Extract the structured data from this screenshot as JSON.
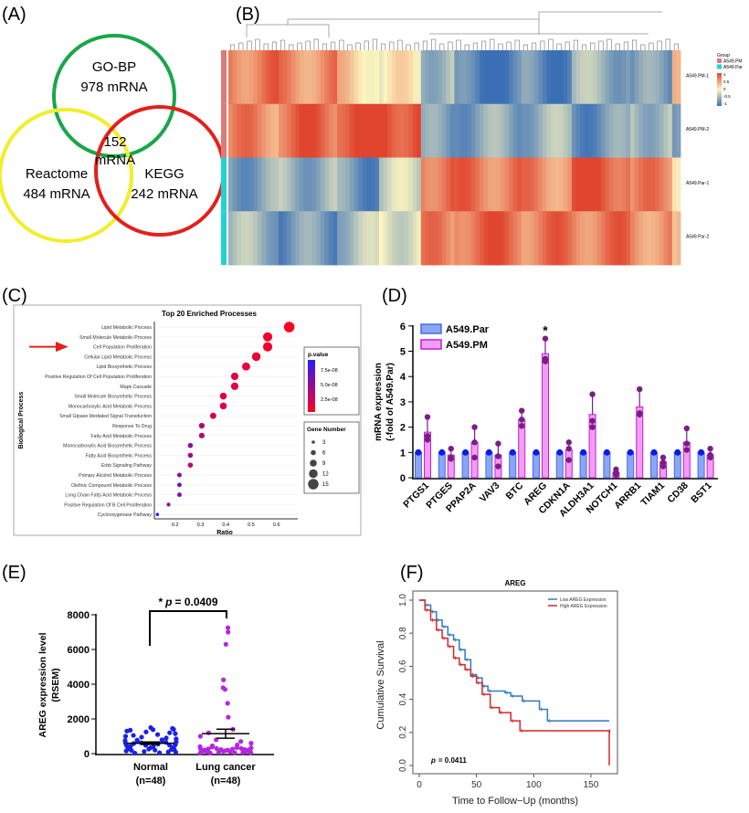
{
  "panel_labels": [
    "(A)",
    "(B)",
    "(C)",
    "(D)",
    "(E)",
    "(F)"
  ],
  "chart_data": [
    {
      "type": "venn",
      "sets": [
        {
          "label": "GO-BP",
          "count": "978 mRNA",
          "color": "#1aa64a"
        },
        {
          "label": "Reactome",
          "count": "484 mRNA",
          "color": "#f2ee2a"
        },
        {
          "label": "KEGG",
          "count": "242 mRNA",
          "color": "#e3201b"
        }
      ],
      "intersection": {
        "count": "152",
        "unit": "mRNA"
      }
    },
    {
      "type": "heatmap",
      "rows": [
        "A549.PM-1",
        "A549.PM-2",
        "A549.Par-1",
        "A549.Par-2"
      ],
      "row_groups": [
        "A549.PM",
        "A549.PM",
        "A549.Par",
        "A549.Par"
      ],
      "legend": {
        "title": "Group",
        "entries": [
          {
            "label": "A549.PM",
            "color": "#e07a7a"
          },
          {
            "label": "A549.Par",
            "color": "#22d3d3"
          }
        ]
      },
      "color_scale": {
        "ticks": [
          "1",
          "0.5",
          "0",
          "-0.5",
          "-1"
        ],
        "low": "#3a6fb5",
        "mid": "#fdf6c0",
        "high": "#e0452e"
      },
      "column_blocks": [
        {
          "n": 12,
          "values": [
            0.7,
            0.6,
            -0.6,
            -0.5
          ]
        },
        {
          "n": 14,
          "values": [
            0.6,
            0.8,
            -0.5,
            -0.7
          ]
        },
        {
          "n": 10,
          "values": [
            0.2,
            1.0,
            -0.7,
            -0.4
          ]
        },
        {
          "n": 10,
          "values": [
            0.0,
            1.0,
            -0.3,
            -0.1
          ]
        },
        {
          "n": 8,
          "values": [
            -0.4,
            -0.7,
            0.8,
            0.6
          ]
        },
        {
          "n": 16,
          "values": [
            -0.9,
            -0.6,
            0.7,
            0.8
          ]
        },
        {
          "n": 12,
          "values": [
            -0.8,
            -0.5,
            0.6,
            0.7
          ]
        },
        {
          "n": 14,
          "values": [
            -0.5,
            -0.7,
            0.9,
            0.7
          ]
        },
        {
          "n": 10,
          "values": [
            -0.7,
            -0.4,
            0.6,
            0.6
          ]
        },
        {
          "n": 2,
          "values": [
            0.6,
            -0.9,
            0.3,
            0.1
          ]
        }
      ]
    },
    {
      "type": "scatter",
      "title": "Top 20 Enriched Processes",
      "xlabel": "Ratio",
      "ylabel": "Biological Process",
      "xticks": [
        0.2,
        0.3,
        0.4,
        0.5,
        0.6
      ],
      "xlim": [
        0.1,
        0.68
      ],
      "highlight": "Cell Population Proliferation",
      "categories": [
        "Lipid Metabolic Process",
        "Small Molecule Metabolic Process",
        "Cell Population Proliferation",
        "Cellular Lipid Metabolic Process",
        "Lipid Biosynthetic Process",
        "Positive Regulation Of Cell Population Proliferation",
        "Mapk Cascade",
        "Small Molecule Biosynthetic Process",
        "Monocarboxylic Acid Metabolic Process",
        "Small Gtpase Mediated Signal Transduction",
        "Response To Drug",
        "Fatty Acid Metabolic Process",
        "Monocarboxylic Acid Biosynthetic Process",
        "Fatty Acid Biosynthetic Process",
        "Erbb Signaling Pathway",
        "Primary Alcohol Metabolic Process",
        "Olefinic Compound Metabolic Process",
        "Long Chain Fatty Acid Metabolic Process",
        "Positive Regulation Of B Cell Proliferation",
        "Cyclooxygenase Pathway"
      ],
      "ratio": [
        0.65,
        0.565,
        0.565,
        0.52,
        0.48,
        0.435,
        0.435,
        0.39,
        0.39,
        0.35,
        0.305,
        0.305,
        0.26,
        0.26,
        0.26,
        0.217,
        0.217,
        0.217,
        0.174,
        0.13
      ],
      "gene_number": [
        15,
        13,
        13,
        12,
        11,
        10,
        10,
        9,
        9,
        8,
        7,
        7,
        6,
        6,
        6,
        5,
        5,
        5,
        4,
        3
      ],
      "p_value": [
        1e-09,
        5e-09,
        5e-09,
        8e-09,
        1e-08,
        1.2e-08,
        1.2e-08,
        1.5e-08,
        1.5e-08,
        2e-08,
        3.5e-08,
        3.5e-08,
        4.5e-08,
        4e-08,
        3e-08,
        5e-08,
        6e-08,
        5.5e-08,
        4.5e-08,
        9e-08
      ],
      "legend_color": {
        "title": "p.value",
        "ticks": [
          "7.5e-08",
          "5.0e-08",
          "2.5e-08"
        ],
        "low": "#ff0022",
        "high": "#2b1aff"
      },
      "legend_size": {
        "title": "Gene Number",
        "ticks": [
          "3",
          "6",
          "9",
          "12",
          "15"
        ]
      }
    },
    {
      "type": "bar",
      "ylabel": "mRNA expression",
      "ylabel2": "(-fold of A549.Par)",
      "ylim": [
        0,
        6
      ],
      "yticks": [
        "0",
        "1",
        "2",
        "3",
        "4",
        "5",
        "6"
      ],
      "categories": [
        "PTGS1",
        "PTGES",
        "PPAP2A",
        "VAV3",
        "BTC",
        "AREG",
        "CDKN1A",
        "ALDH3A1",
        "NOTCH1",
        "ARRB1",
        "TIAM1",
        "CD38",
        "BST1"
      ],
      "series": [
        {
          "name": "A549.Par",
          "color": "#8aa6f5",
          "values": [
            1,
            1,
            1,
            1,
            1,
            1,
            1,
            1,
            1,
            1,
            1,
            1,
            1
          ]
        },
        {
          "name": "A549.PM",
          "color": "#f39cf5",
          "values": [
            1.8,
            0.9,
            1.4,
            0.9,
            2.3,
            4.9,
            1.1,
            2.5,
            0.22,
            2.8,
            0.62,
            1.4,
            0.9
          ],
          "points": [
            [
              2.4,
              1.65,
              1.5
            ],
            [
              1.15,
              0.8,
              0.75
            ],
            [
              2.0,
              1.4,
              0.8
            ],
            [
              1.35,
              0.85,
              0.45
            ],
            [
              2.65,
              2.3,
              2.05
            ],
            [
              5.5,
              4.7,
              4.6
            ],
            [
              1.4,
              1.15,
              0.7
            ],
            [
              3.3,
              2.25,
              2.0
            ],
            [
              0.33,
              0.2,
              0.12
            ],
            [
              3.5,
              2.55,
              2.5
            ],
            [
              0.8,
              0.6,
              0.45
            ],
            [
              1.95,
              1.35,
              1.1
            ],
            [
              1.15,
              0.9,
              0.8
            ]
          ]
        }
      ],
      "annotation": {
        "category": "AREG",
        "text": "*"
      }
    },
    {
      "type": "scatter",
      "ylabel": "AREG expression level",
      "ylabel2": "(RSEM)",
      "ylim": [
        0,
        8000
      ],
      "yticks": [
        "0",
        "2000",
        "4000",
        "6000",
        "8000"
      ],
      "groups": [
        {
          "label": "Normal",
          "n": "(n=48)",
          "color": "#1a22e0",
          "mean": 600,
          "sem": 70,
          "values": [
            1500,
            1450,
            1400,
            1380,
            1350,
            1300,
            1250,
            1200,
            1150,
            1100,
            1050,
            1000,
            950,
            900,
            850,
            800,
            780,
            750,
            720,
            700,
            680,
            650,
            620,
            600,
            580,
            550,
            520,
            500,
            480,
            450,
            420,
            400,
            380,
            350,
            330,
            300,
            280,
            260,
            240,
            220,
            200,
            180,
            150,
            120,
            100,
            80,
            50,
            30
          ]
        },
        {
          "label": "Lung cancer",
          "n": "(n=48)",
          "color": "#b526e0",
          "mean": 1150,
          "sem": 260,
          "values": [
            7250,
            7000,
            6300,
            4250,
            3800,
            3700,
            2900,
            2100,
            1400,
            1200,
            1000,
            800,
            700,
            600,
            500,
            450,
            400,
            380,
            350,
            330,
            300,
            300,
            280,
            270,
            260,
            250,
            240,
            230,
            220,
            210,
            200,
            190,
            180,
            170,
            160,
            150,
            140,
            130,
            120,
            110,
            100,
            90,
            80,
            70,
            60,
            50,
            40,
            30
          ]
        }
      ],
      "significance": "* p = 0.0409",
      "sig_star": "*",
      "sig_p": "p",
      "sig_value": "= 0.0409"
    },
    {
      "type": "line",
      "title": "AREG",
      "xlabel": "Time to Follow−Up (months)",
      "ylabel": "Cumulative Survival",
      "xlim": [
        0,
        166
      ],
      "ylim": [
        0,
        1
      ],
      "xticks": [
        "0",
        "50",
        "100",
        "150"
      ],
      "yticks": [
        "0.0",
        "0.2",
        "0.4",
        "0.6",
        "0.8",
        "1.0"
      ],
      "p_label": "p",
      "p_value": "= 0.0411",
      "series": [
        {
          "name": "Low AREG Expression",
          "color": "#2f7bbf",
          "x": [
            0,
            5,
            10,
            15,
            20,
            25,
            30,
            35,
            40,
            45,
            50,
            55,
            60,
            75,
            80,
            90,
            105,
            112,
            166
          ],
          "y": [
            1,
            0.97,
            0.93,
            0.88,
            0.84,
            0.79,
            0.76,
            0.7,
            0.64,
            0.55,
            0.53,
            0.48,
            0.45,
            0.44,
            0.42,
            0.39,
            0.34,
            0.27,
            0.27
          ]
        },
        {
          "name": "High AREG Expression",
          "color": "#d62728",
          "x": [
            0,
            5,
            10,
            15,
            20,
            25,
            30,
            35,
            40,
            45,
            50,
            55,
            62,
            70,
            80,
            88,
            165,
            166
          ],
          "y": [
            1,
            0.94,
            0.88,
            0.82,
            0.77,
            0.72,
            0.65,
            0.61,
            0.58,
            0.54,
            0.5,
            0.43,
            0.35,
            0.32,
            0.27,
            0.21,
            0.21,
            0
          ]
        }
      ]
    }
  ]
}
